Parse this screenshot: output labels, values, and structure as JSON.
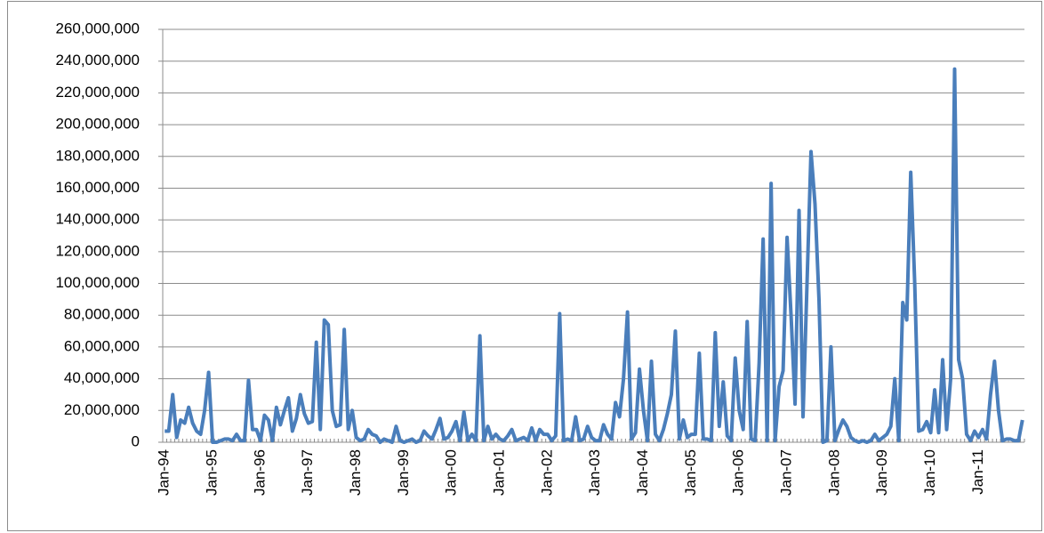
{
  "chart_data": {
    "type": "line",
    "color": "#4a7ebb",
    "grid": true,
    "ylim": [
      0,
      260000000
    ],
    "yticks": [
      0,
      {
        "value": 20000000,
        "label": "20,000,000"
      },
      {
        "value": 40000000,
        "label": "40,000,000"
      },
      {
        "value": 60000000,
        "label": "60,000,000"
      },
      {
        "value": 80000000,
        "label": "80,000,000"
      },
      {
        "value": 100000000,
        "label": "100,000,000"
      },
      {
        "value": 120000000,
        "label": "120,000,000"
      },
      {
        "value": 140000000,
        "label": "140,000,000"
      },
      {
        "value": 160000000,
        "label": "160,000,000"
      },
      {
        "value": 180000000,
        "label": "180,000,000"
      },
      {
        "value": 200000000,
        "label": "200,000,000"
      },
      {
        "value": 220000000,
        "label": "220,000,000"
      },
      {
        "value": 240000000,
        "label": "240,000,000"
      },
      {
        "value": 260000000,
        "label": "260,000,000"
      }
    ],
    "categories": [
      "Jan-94",
      null,
      null,
      null,
      null,
      null,
      null,
      null,
      null,
      null,
      null,
      null,
      "Jan-95",
      null,
      null,
      null,
      null,
      null,
      null,
      null,
      null,
      null,
      null,
      null,
      "Jan-96",
      null,
      null,
      null,
      null,
      null,
      null,
      null,
      null,
      null,
      null,
      null,
      "Jan-97",
      null,
      null,
      null,
      null,
      null,
      null,
      null,
      null,
      null,
      null,
      null,
      "Jan-98",
      null,
      null,
      null,
      null,
      null,
      null,
      null,
      null,
      null,
      null,
      null,
      "Jan-99",
      null,
      null,
      null,
      null,
      null,
      null,
      null,
      null,
      null,
      null,
      null,
      "Jan-00",
      null,
      null,
      null,
      null,
      null,
      null,
      null,
      null,
      null,
      null,
      null,
      "Jan-01",
      null,
      null,
      null,
      null,
      null,
      null,
      null,
      null,
      null,
      null,
      null,
      "Jan-02",
      null,
      null,
      null,
      null,
      null,
      null,
      null,
      null,
      null,
      null,
      null,
      "Jan-03",
      null,
      null,
      null,
      null,
      null,
      null,
      null,
      null,
      null,
      null,
      null,
      "Jan-04",
      null,
      null,
      null,
      null,
      null,
      null,
      null,
      null,
      null,
      null,
      null,
      "Jan-05",
      null,
      null,
      null,
      null,
      null,
      null,
      null,
      null,
      null,
      null,
      null,
      "Jan-06",
      null,
      null,
      null,
      null,
      null,
      null,
      null,
      null,
      null,
      null,
      null,
      "Jan-07",
      null,
      null,
      null,
      null,
      null,
      null,
      null,
      null,
      null,
      null,
      null,
      "Jan-08",
      null,
      null,
      null,
      null,
      null,
      null,
      null,
      null,
      null,
      null,
      null,
      "Jan-09",
      null,
      null,
      null,
      null,
      null,
      null,
      null,
      null,
      null,
      null,
      null,
      "Jan-10",
      null,
      null,
      null,
      null,
      null,
      null,
      null,
      null,
      null,
      null,
      null,
      "Jan-11",
      null,
      null,
      null,
      null,
      null,
      null,
      null,
      null,
      null,
      null,
      null
    ],
    "values": [
      7000000.0,
      7000000.0,
      30000000.0,
      3000000.0,
      14000000.0,
      12000000.0,
      22000000.0,
      12000000.0,
      7000000.0,
      5000000.0,
      20000000.0,
      44000000.0,
      0,
      0,
      1000000.0,
      2000000.0,
      2000000.0,
      1000000.0,
      5000000.0,
      1000000.0,
      1000000.0,
      39000000.0,
      8000000.0,
      8000000.0,
      1000000.0,
      17000000.0,
      14000000.0,
      1000000.0,
      22000000.0,
      11000000.0,
      20000000.0,
      28000000.0,
      7000000.0,
      15000000.0,
      30000000.0,
      18000000.0,
      12000000.0,
      13000000.0,
      63000000.0,
      8000000.0,
      77000000.0,
      74000000.0,
      20000000.0,
      10000000.0,
      11000000.0,
      71000000.0,
      8000000.0,
      20000000.0,
      3000000.0,
      1000000.0,
      2000000.0,
      8000000.0,
      5000000.0,
      4000000.0,
      0,
      2000000.0,
      1000000.0,
      0,
      10000000.0,
      1000000.0,
      0,
      1000000.0,
      2000000.0,
      0,
      1000000.0,
      7000000.0,
      4000000.0,
      2000000.0,
      8000000.0,
      15000000.0,
      2000000.0,
      3000000.0,
      7000000.0,
      13000000.0,
      1000000.0,
      19000000.0,
      1000000.0,
      5000000.0,
      1000000.0,
      67000000.0,
      1000000.0,
      10000000.0,
      2000000.0,
      5000000.0,
      2000000.0,
      1000000.0,
      4000000.0,
      8000000.0,
      1000000.0,
      2000000.0,
      3000000.0,
      1000000.0,
      9000000.0,
      1000000.0,
      8000000.0,
      5000000.0,
      5000000.0,
      1000000.0,
      4000000.0,
      81000000.0,
      1000000.0,
      2000000.0,
      1000000.0,
      16000000.0,
      1000000.0,
      2000000.0,
      10000000.0,
      3000000.0,
      1000000.0,
      1000000.0,
      11000000.0,
      5000000.0,
      2000000.0,
      25000000.0,
      16000000.0,
      40000000.0,
      82000000.0,
      2000000.0,
      6000000.0,
      46000000.0,
      20000000.0,
      1000000.0,
      51000000.0,
      5000000.0,
      1000000.0,
      8000000.0,
      18000000.0,
      30000000.0,
      70000000.0,
      2000000.0,
      14000000.0,
      3000000.0,
      5000000.0,
      5000000.0,
      56000000.0,
      2000000.0,
      2000000.0,
      1000000.0,
      69000000.0,
      10000000.0,
      38000000.0,
      4000000.0,
      1000000.0,
      53000000.0,
      20000000.0,
      8000000.0,
      76000000.0,
      2000000.0,
      1000000.0,
      50000000.0,
      128000000.0,
      1000000.0,
      163000000.0,
      1000000.0,
      35000000.0,
      45000000.0,
      129000000.0,
      80000000.0,
      24000000.0,
      146000000.0,
      16000000.0,
      100000000.0,
      183000000.0,
      150000000.0,
      90000000.0,
      0,
      1000000.0,
      60000000.0,
      1000000.0,
      8000000.0,
      14000000.0,
      10000000.0,
      3000000.0,
      1000000.0,
      0,
      1000000.0,
      0,
      1000000.0,
      5000000.0,
      1000000.0,
      3000000.0,
      5000000.0,
      10000000.0,
      40000000.0,
      1000000.0,
      88000000.0,
      77000000.0,
      170000000.0,
      100000000.0,
      7000000.0,
      8000000.0,
      13000000.0,
      6000000.0,
      33000000.0,
      6000000.0,
      52000000.0,
      8000000.0,
      40000000.0,
      235000000.0,
      52000000.0,
      40000000.0,
      5000000.0,
      1000000.0,
      7000000.0,
      3000000.0,
      8000000.0,
      2000000.0,
      30000000.0,
      51000000.0,
      20000000.0,
      1000000.0,
      2000000.0,
      2000000.0,
      1000000.0,
      1000000.0,
      14000000.0
    ]
  }
}
